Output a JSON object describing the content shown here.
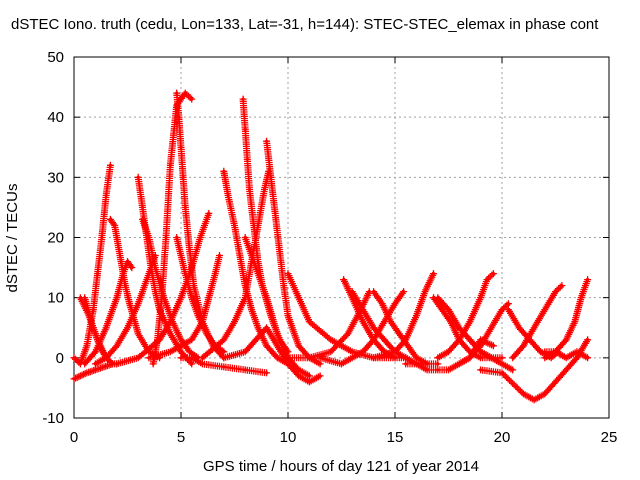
{
  "chart_data": {
    "type": "scatter",
    "title": "dSTEC Iono. truth (cedu, Lon=133, Lat=-31, h=144): STEC-STEC_elemax in phase cont",
    "xlabel": "GPS time / hours of day 121 of year 2014",
    "ylabel": "dSTEC  / TECUs",
    "xlim": [
      0,
      25
    ],
    "ylim": [
      -10,
      50
    ],
    "x_ticks": [
      "0",
      "5",
      "10",
      "15",
      "20",
      "25"
    ],
    "y_ticks": [
      "-10",
      "0",
      "10",
      "20",
      "30",
      "40",
      "50"
    ],
    "grid": true,
    "legend": "none",
    "marker": "plus",
    "color": "#ff0000",
    "series": [
      {
        "x": [
          0.0,
          0.3,
          0.6,
          1.0,
          1.4,
          1.8
        ],
        "y": [
          -3.5,
          -3,
          -2.5,
          -2,
          -1.5,
          -1
        ]
      },
      {
        "x": [
          0.3,
          0.7,
          1.1,
          1.5,
          1.8
        ],
        "y": [
          10,
          7,
          3,
          0,
          -1
        ]
      },
      {
        "x": [
          0.0,
          0.3,
          0.6,
          0.9,
          1.1,
          1.3,
          1.5,
          1.7
        ],
        "y": [
          0,
          -1,
          2,
          8,
          14,
          20,
          27,
          32
        ]
      },
      {
        "x": [
          0.5,
          0.8,
          1.0,
          1.2,
          1.5,
          1.8,
          2.0
        ],
        "y": [
          10,
          6,
          4,
          2,
          0,
          -1,
          -1
        ]
      },
      {
        "x": [
          1.7,
          1.9,
          2.0,
          2.2,
          2.4,
          2.6,
          3.0,
          3.5,
          4.0
        ],
        "y": [
          23,
          22,
          20,
          16,
          12,
          9,
          4,
          1,
          0
        ]
      },
      {
        "x": [
          0.5,
          1.0,
          1.5,
          2.0,
          2.3,
          2.5,
          2.7
        ],
        "y": [
          -1,
          1,
          5,
          10,
          14,
          16,
          15
        ]
      },
      {
        "x": [
          3.0,
          3.2,
          3.4,
          3.6,
          3.8,
          4.0,
          4.5,
          5.0,
          5.5
        ],
        "y": [
          30,
          25,
          20,
          15,
          11,
          8,
          4,
          1,
          -1
        ]
      },
      {
        "x": [
          3.2,
          3.5,
          3.8,
          4.2,
          4.6,
          5.0,
          5.4,
          5.8
        ],
        "y": [
          23,
          20,
          15,
          10,
          6,
          3,
          1,
          0
        ]
      },
      {
        "x": [
          1.0,
          1.5,
          2.0,
          2.5,
          3.0,
          3.5,
          3.8
        ],
        "y": [
          -1,
          0,
          2,
          5,
          9,
          14,
          17
        ]
      },
      {
        "x": [
          3.7,
          3.9,
          4.1,
          4.3,
          4.5,
          4.8,
          5.2,
          5.5
        ],
        "y": [
          -1,
          3,
          10,
          20,
          32,
          42,
          44,
          43
        ]
      },
      {
        "x": [
          4.8,
          4.9,
          5.0,
          5.1,
          5.2,
          5.4,
          5.6,
          6.0,
          6.5,
          7.0
        ],
        "y": [
          44,
          40,
          35,
          30,
          25,
          18,
          12,
          6,
          2,
          0
        ]
      },
      {
        "x": [
          4.8,
          5.0,
          5.2,
          5.5,
          5.8,
          6.2,
          6.6,
          7.0
        ],
        "y": [
          20,
          17,
          14,
          10,
          7,
          4,
          2,
          1
        ]
      },
      {
        "x": [
          2.0,
          3.0,
          4.0,
          4.5,
          5.0,
          5.5,
          5.9,
          6.3
        ],
        "y": [
          -1,
          0,
          3,
          6,
          10,
          15,
          20,
          24
        ]
      },
      {
        "x": [
          3.5,
          4.5,
          5.5,
          6.0,
          6.3,
          6.6,
          6.8
        ],
        "y": [
          0,
          1,
          3,
          6,
          10,
          14,
          17
        ]
      },
      {
        "x": [
          5.0,
          5.5,
          6.0,
          7.0,
          8.0,
          9.0
        ],
        "y": [
          0,
          0,
          -1,
          -1.5,
          -2,
          -2.5
        ]
      },
      {
        "x": [
          7.0,
          7.2,
          7.5,
          7.8,
          8.0,
          8.3,
          8.6,
          9.0,
          9.5,
          10.0
        ],
        "y": [
          31,
          27,
          22,
          16,
          12,
          8,
          5,
          2,
          0,
          -1
        ]
      },
      {
        "x": [
          7.9,
          8.0,
          8.1,
          8.2,
          8.4,
          8.6,
          8.8,
          9.2,
          9.6,
          10.0
        ],
        "y": [
          43,
          38,
          33,
          28,
          22,
          16,
          12,
          7,
          3,
          1
        ]
      },
      {
        "x": [
          6.0,
          7.0,
          7.5,
          8.0,
          8.3,
          8.6,
          8.9,
          9.1
        ],
        "y": [
          0,
          3,
          6,
          10,
          16,
          22,
          28,
          31
        ]
      },
      {
        "x": [
          8.0,
          8.5,
          9.0,
          9.5,
          10.0,
          10.5,
          11.0
        ],
        "y": [
          20,
          15,
          10,
          4,
          0,
          -2,
          -3
        ]
      },
      {
        "x": [
          9.0,
          9.2,
          9.4,
          9.6,
          9.8,
          10.0,
          10.5,
          11.0,
          11.5
        ],
        "y": [
          36,
          30,
          24,
          18,
          12,
          7,
          2,
          0,
          -1
        ]
      },
      {
        "x": [
          7.0,
          8.0,
          8.5,
          9.0,
          9.5,
          10.0,
          10.5,
          11.0,
          11.5
        ],
        "y": [
          0,
          1,
          3,
          5,
          2,
          -1,
          -3,
          -4,
          -3
        ]
      },
      {
        "x": [
          10.0,
          10.5,
          11.0,
          12.0,
          13.0,
          14.0,
          15.0
        ],
        "y": [
          14,
          10,
          6,
          3,
          1,
          0,
          0
        ]
      },
      {
        "x": [
          12.6,
          13.0,
          13.5,
          14.0,
          14.5,
          15.0,
          15.5
        ],
        "y": [
          13,
          10,
          6,
          3,
          1,
          0,
          0
        ]
      },
      {
        "x": [
          13.0,
          13.5,
          14.0,
          14.5,
          15.0,
          15.5,
          16.0,
          16.5
        ],
        "y": [
          11,
          8,
          5,
          3,
          1,
          0,
          -1,
          -1
        ]
      },
      {
        "x": [
          14.0,
          14.4,
          14.8,
          15.2,
          15.6,
          16.0,
          16.5,
          17.0
        ],
        "y": [
          11,
          9,
          6,
          4,
          2,
          0,
          -1,
          -1
        ]
      },
      {
        "x": [
          10.0,
          11.0,
          12.0,
          12.8,
          13.4,
          13.8
        ],
        "y": [
          0,
          0,
          1,
          4,
          8,
          11
        ]
      },
      {
        "x": [
          11.5,
          12.5,
          13.0,
          13.5,
          14.0,
          14.5,
          15.0,
          15.4
        ],
        "y": [
          0,
          -1,
          0,
          1,
          3,
          6,
          9,
          11
        ]
      },
      {
        "x": [
          14.0,
          15.0,
          15.5,
          16.0,
          16.4,
          16.8
        ],
        "y": [
          0,
          1,
          3,
          7,
          11,
          14
        ]
      },
      {
        "x": [
          16.8,
          17.2,
          17.6,
          18.0,
          18.5,
          19.0,
          19.5
        ],
        "y": [
          10,
          8,
          6,
          3,
          1,
          0,
          0
        ]
      },
      {
        "x": [
          17.0,
          17.5,
          18.0,
          18.5,
          19.0,
          19.5,
          20.0
        ],
        "y": [
          10,
          8,
          5,
          3,
          1,
          0,
          0
        ]
      },
      {
        "x": [
          15.5,
          16.0,
          16.5,
          17.0,
          17.5,
          18.0,
          18.5,
          19.0,
          19.6
        ],
        "y": [
          -1,
          -1,
          -2,
          -2,
          -2,
          -1,
          0,
          3,
          2
        ]
      },
      {
        "x": [
          17.0,
          17.5,
          18.0,
          18.5,
          19.0,
          19.3,
          19.6
        ],
        "y": [
          0,
          1,
          3,
          6,
          10,
          13,
          14
        ]
      },
      {
        "x": [
          18.0,
          18.5,
          19.0,
          19.5,
          20.0,
          20.3
        ],
        "y": [
          -1,
          0,
          2,
          5,
          8,
          9
        ]
      },
      {
        "x": [
          19.0,
          20.0,
          21.0,
          21.5,
          22.0,
          22.5,
          23.0,
          23.5,
          24.0
        ],
        "y": [
          -2,
          -2.5,
          -6,
          -7,
          -6,
          -4,
          -2,
          0,
          3
        ]
      },
      {
        "x": [
          20.5,
          21.0,
          21.5,
          22.0,
          22.5,
          22.8
        ],
        "y": [
          0,
          2,
          5,
          8,
          11,
          12
        ]
      },
      {
        "x": [
          20.3,
          20.8,
          21.3,
          21.8,
          22.3,
          22.6
        ],
        "y": [
          8,
          5,
          3,
          1,
          0,
          1
        ]
      },
      {
        "x": [
          22.0,
          22.5,
          23.0,
          23.5,
          24.0
        ],
        "y": [
          1,
          1,
          0,
          1,
          0
        ]
      },
      {
        "x": [
          22.0,
          22.5,
          23.0,
          23.4,
          23.7,
          24.0
        ],
        "y": [
          0,
          1,
          3,
          6,
          10,
          13
        ]
      },
      {
        "x": [
          18.5,
          19.0,
          19.5,
          20.0,
          20.5
        ],
        "y": [
          3,
          1,
          0,
          -1,
          -2
        ]
      }
    ]
  }
}
